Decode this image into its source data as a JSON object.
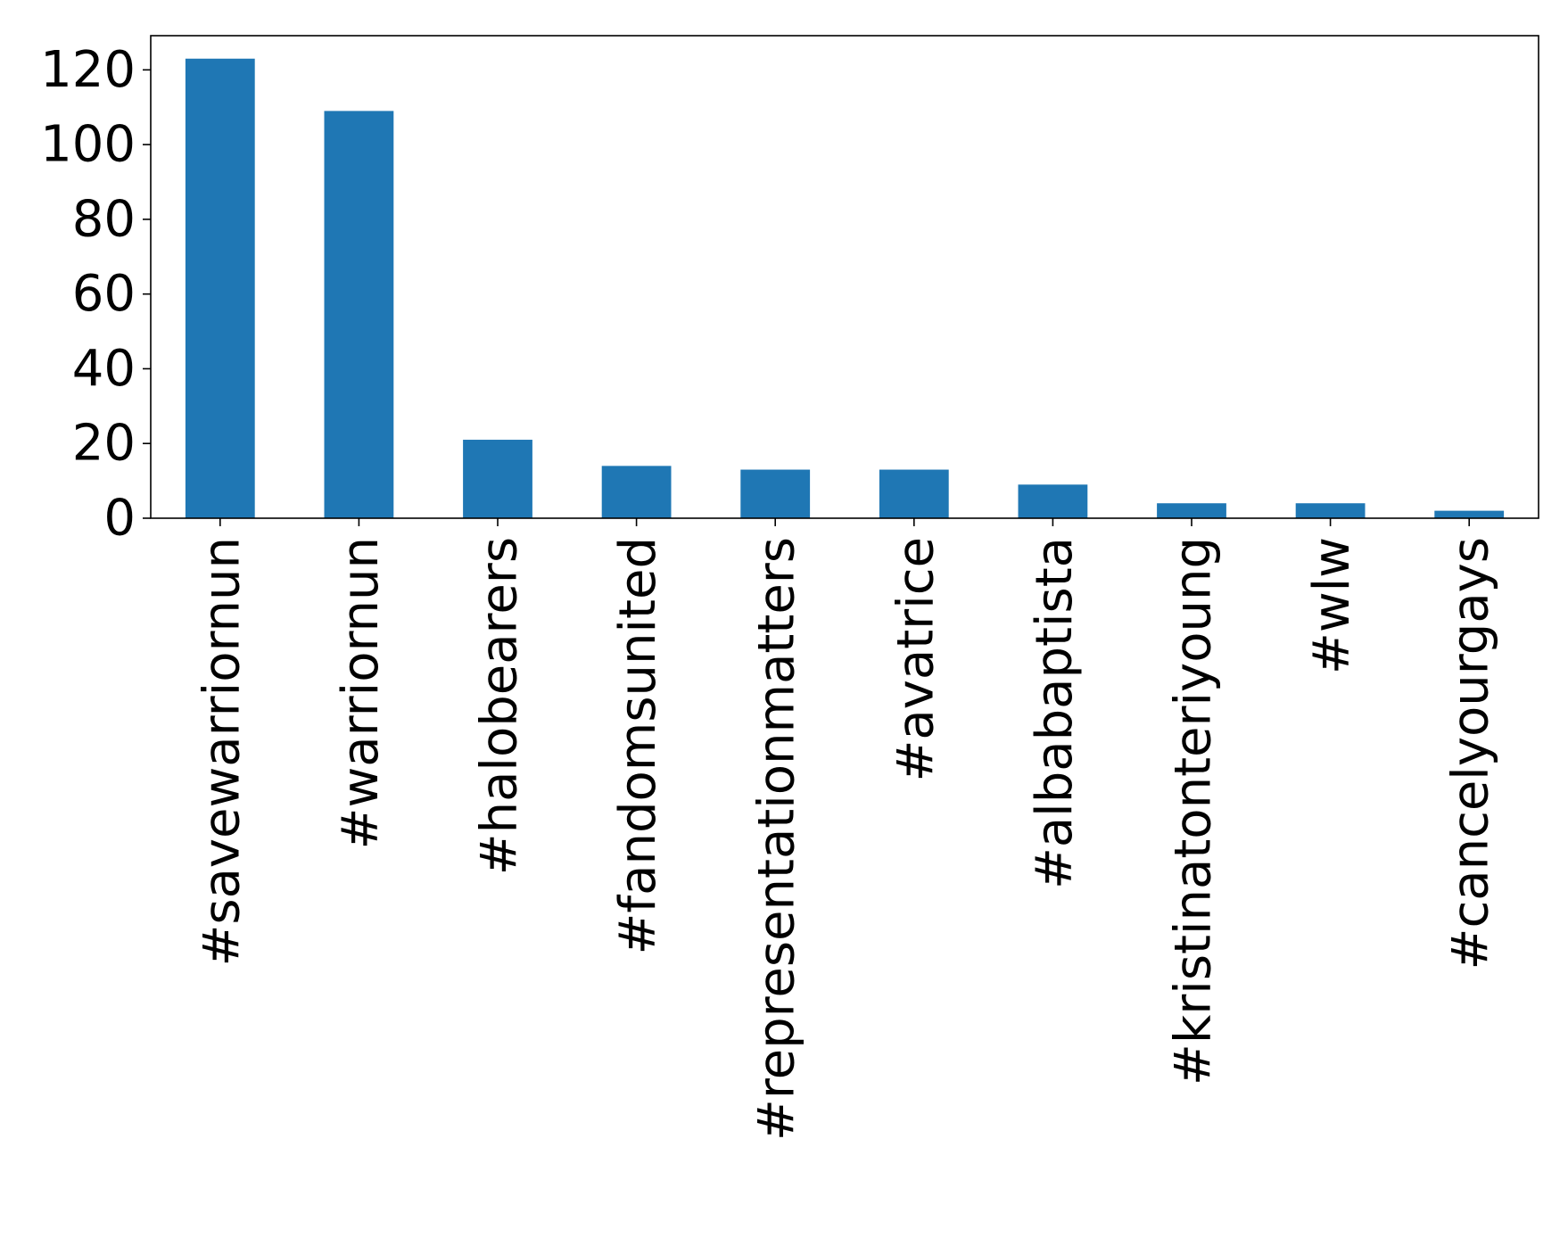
{
  "chart_data": {
    "type": "bar",
    "title": "",
    "xlabel": "",
    "ylabel": "",
    "categories": [
      "#savewarriornun",
      "#warriornun",
      "#halobearers",
      "#fandomsunited",
      "#representationmatters",
      "#avatrice",
      "#albabaptista",
      "#kristinatonteriyoung",
      "#wlw",
      "#cancelyourgays"
    ],
    "values": [
      123,
      109,
      21,
      14,
      13,
      13,
      9,
      4,
      4,
      2
    ],
    "ylim": [
      0,
      129.15
    ],
    "yticks": [
      0,
      20,
      40,
      60,
      80,
      100,
      120
    ],
    "grid": false,
    "legend": "none",
    "bar_color": "#1f77b4"
  }
}
